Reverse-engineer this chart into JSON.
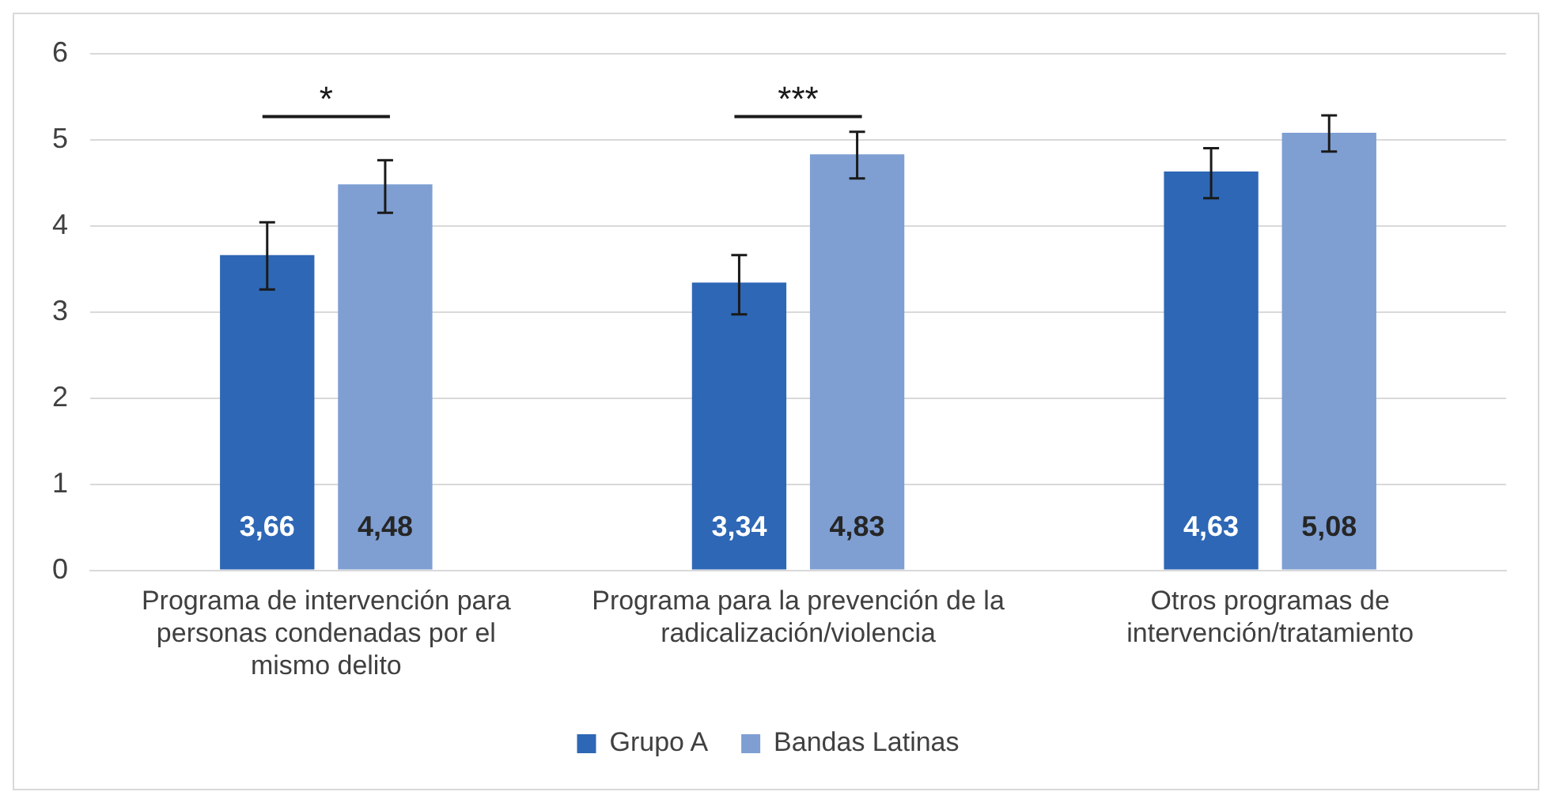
{
  "chart_data": {
    "type": "bar",
    "categories": [
      "Programa de intervención para personas condenadas por el mismo delito",
      "Programa para la prevención de la radicalización/violencia",
      "Otros programas de intervención/tratamiento"
    ],
    "series": [
      {
        "name": "Grupo A",
        "color": "#2e67b5",
        "values": [
          3.66,
          3.34,
          4.63
        ],
        "value_labels": [
          "3,66",
          "3,34",
          "4,63"
        ],
        "errors": [
          [
            3.26,
            4.04
          ],
          [
            2.97,
            3.66
          ],
          [
            4.32,
            4.9
          ]
        ]
      },
      {
        "name": "Bandas Latinas",
        "color": "#7f9fd3",
        "values": [
          4.48,
          4.83,
          5.08
        ],
        "value_labels": [
          "4,48",
          "4,83",
          "5,08"
        ],
        "errors": [
          [
            4.15,
            4.76
          ],
          [
            4.55,
            5.09
          ],
          [
            4.86,
            5.28
          ]
        ]
      }
    ],
    "ylim": [
      0,
      6
    ],
    "yticks": [
      0,
      1,
      2,
      3,
      4,
      5,
      6
    ],
    "grid": "y",
    "legend": "bottom",
    "annotations": [
      "*",
      "***"
    ]
  }
}
